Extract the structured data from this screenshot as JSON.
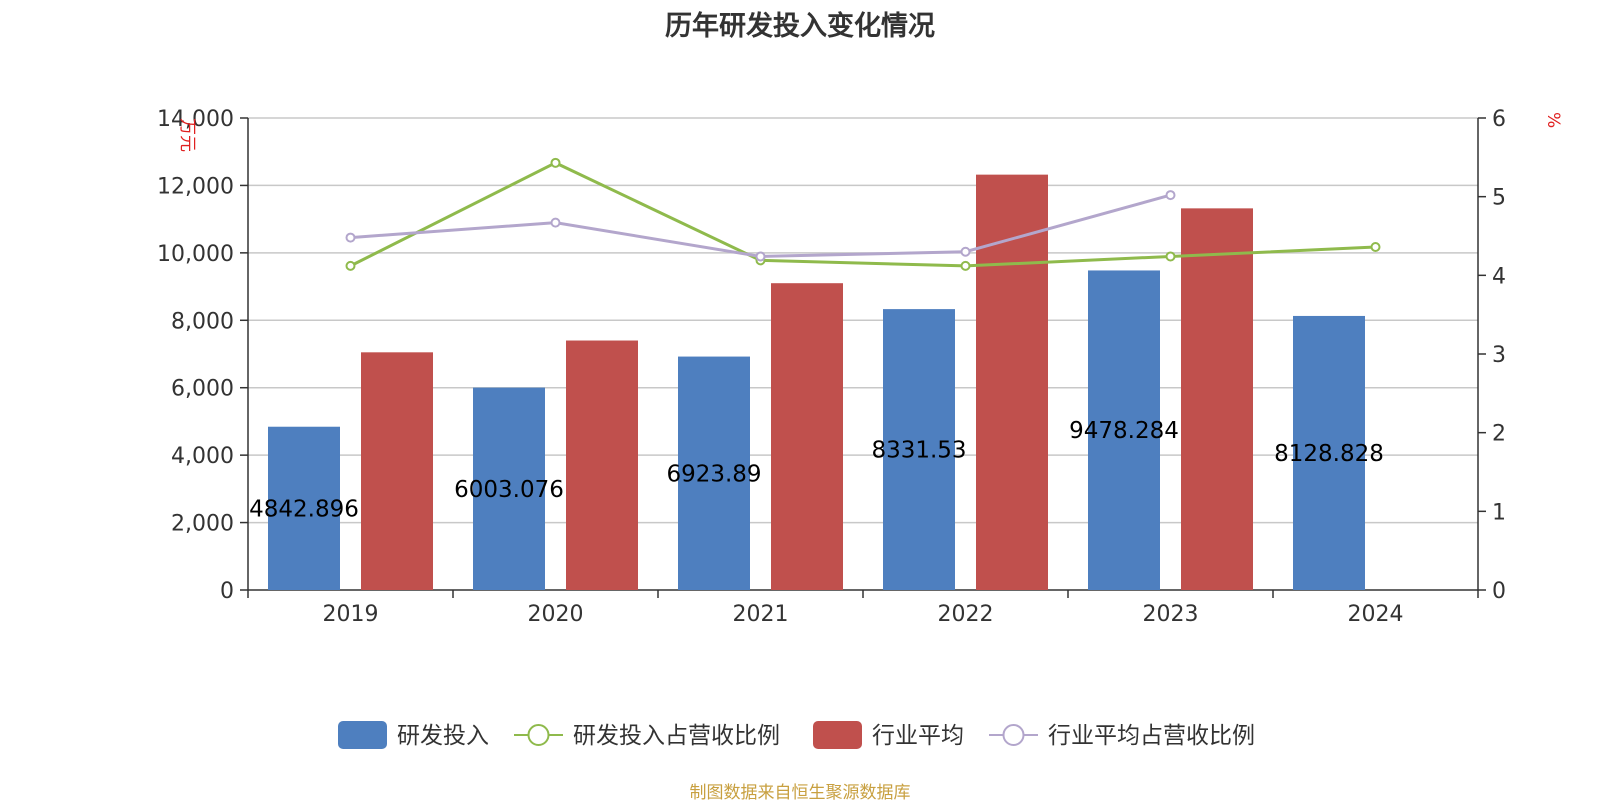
{
  "chart_data": {
    "type": "bar",
    "title": "历年研发投入变化情况",
    "source_note": "制图数据来自恒生聚源数据库",
    "categories": [
      "2019",
      "2020",
      "2021",
      "2022",
      "2023",
      "2024"
    ],
    "y_left": {
      "unit": "万元",
      "range": [
        0,
        14000
      ],
      "ticks": [
        "0",
        "2,000",
        "4,000",
        "6,000",
        "8,000",
        "10,000",
        "12,000",
        "14,000"
      ],
      "tick_values": [
        0,
        2000,
        4000,
        6000,
        8000,
        10000,
        12000,
        14000
      ]
    },
    "y_right": {
      "unit": "%",
      "range": [
        0,
        6
      ],
      "ticks": [
        "0",
        "1",
        "2",
        "3",
        "4",
        "5",
        "6"
      ],
      "tick_values": [
        0,
        1,
        2,
        3,
        4,
        5,
        6
      ]
    },
    "grid": true,
    "legend_position": "bottom",
    "series": [
      {
        "name": "研发投入",
        "kind": "bar",
        "axis": "left",
        "color": "#4e7fbf",
        "values": [
          4842.896,
          6003.076,
          6923.89,
          8331.53,
          9478.284,
          8128.828
        ],
        "labels": [
          "4842.896",
          "6003.076",
          "6923.89",
          "8331.53",
          "9478.284",
          "8128.828"
        ]
      },
      {
        "name": "研发投入占营收比例",
        "kind": "line",
        "axis": "right",
        "color": "#8fba4c",
        "values": [
          4.12,
          5.43,
          4.19,
          4.12,
          4.24,
          4.36
        ]
      },
      {
        "name": "行业平均",
        "kind": "bar",
        "axis": "left",
        "color": "#c0504d",
        "values": [
          7050,
          7400,
          9100,
          12320,
          11320,
          null
        ]
      },
      {
        "name": "行业平均占营收比例",
        "kind": "line",
        "axis": "right",
        "color": "#b3a6cc",
        "values": [
          4.48,
          4.67,
          4.24,
          4.3,
          5.02,
          null
        ]
      }
    ]
  }
}
